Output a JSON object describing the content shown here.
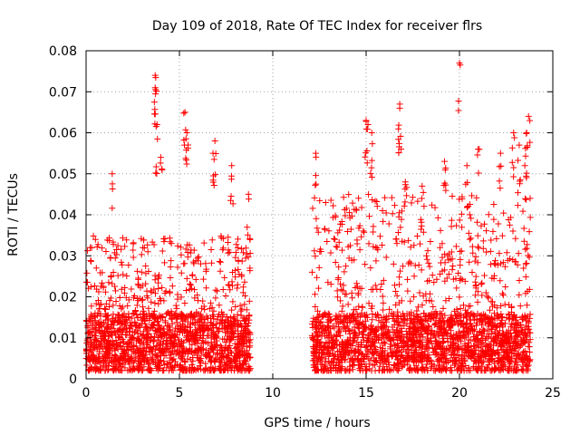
{
  "chart_data": {
    "type": "scatter",
    "title": "Day 109 of 2018, Rate Of TEC Index for receiver flrs",
    "xlabel": "GPS time / hours",
    "ylabel": "ROTI / TECUs",
    "xlim": [
      0,
      25
    ],
    "ylim": [
      0,
      0.08
    ],
    "xticks": [
      0,
      5,
      10,
      15,
      20,
      25
    ],
    "yticks": [
      0,
      0.01,
      0.02,
      0.03,
      0.04,
      0.05,
      0.06,
      0.07,
      0.08
    ],
    "xtick_labels": [
      "0",
      "5",
      "10",
      "15",
      "20",
      "25"
    ],
    "ytick_labels": [
      "0",
      "0.01",
      "0.02",
      "0.03",
      "0.04",
      "0.05",
      "0.06",
      "0.07",
      "0.08"
    ],
    "grid": true,
    "marker": "+",
    "series": [
      {
        "name": "ROTI",
        "color": "#ff0000",
        "segments": [
          {
            "x_start": 0.0,
            "x_end": 8.8,
            "typical_min": 0.002,
            "typical_max": 0.035
          },
          {
            "x_start": 12.1,
            "x_end": 23.8,
            "typical_min": 0.002,
            "typical_max": 0.045
          }
        ],
        "peaks": [
          {
            "x": 1.4,
            "y": 0.05
          },
          {
            "x": 3.7,
            "y": 0.074
          },
          {
            "x": 3.7,
            "y": 0.071
          },
          {
            "x": 3.8,
            "y": 0.062
          },
          {
            "x": 4.0,
            "y": 0.054
          },
          {
            "x": 5.3,
            "y": 0.065
          },
          {
            "x": 5.4,
            "y": 0.06
          },
          {
            "x": 6.9,
            "y": 0.058
          },
          {
            "x": 6.8,
            "y": 0.055
          },
          {
            "x": 7.8,
            "y": 0.052
          },
          {
            "x": 8.7,
            "y": 0.045
          },
          {
            "x": 12.3,
            "y": 0.055
          },
          {
            "x": 15.0,
            "y": 0.063
          },
          {
            "x": 15.1,
            "y": 0.062
          },
          {
            "x": 15.3,
            "y": 0.06
          },
          {
            "x": 16.8,
            "y": 0.067
          },
          {
            "x": 16.8,
            "y": 0.066
          },
          {
            "x": 17.1,
            "y": 0.048
          },
          {
            "x": 18.0,
            "y": 0.047
          },
          {
            "x": 19.2,
            "y": 0.053
          },
          {
            "x": 20.0,
            "y": 0.077
          },
          {
            "x": 20.4,
            "y": 0.052
          },
          {
            "x": 21.0,
            "y": 0.056
          },
          {
            "x": 22.2,
            "y": 0.055
          },
          {
            "x": 22.9,
            "y": 0.06
          },
          {
            "x": 23.2,
            "y": 0.057
          },
          {
            "x": 23.7,
            "y": 0.064
          },
          {
            "x": 23.6,
            "y": 0.06
          },
          {
            "x": 23.5,
            "y": 0.052
          }
        ]
      }
    ]
  }
}
